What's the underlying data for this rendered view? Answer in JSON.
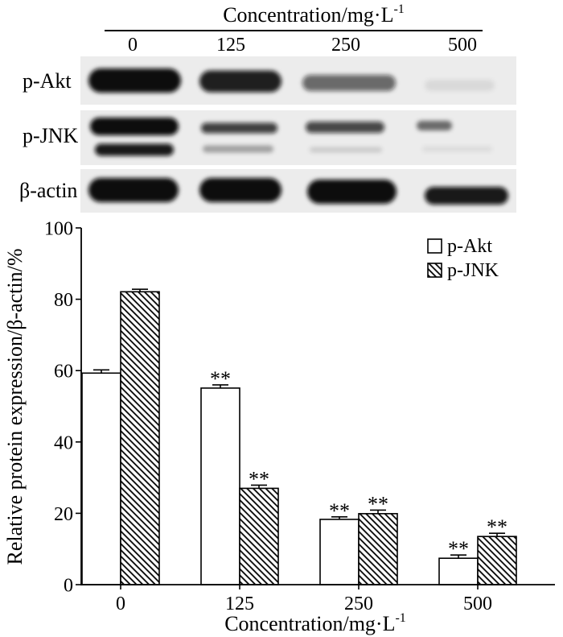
{
  "blot": {
    "title": {
      "text": "Concentration/mg·L",
      "sup": "-1"
    },
    "lanes": [
      "0",
      "125",
      "250",
      "500"
    ],
    "rows": [
      {
        "label": "p-Akt",
        "band_intensity": [
          [
            1.0,
            0.92,
            0.6,
            0.08
          ]
        ]
      },
      {
        "label": "p-JNK",
        "band_intensity": [
          [
            1.0,
            0.78,
            0.75,
            0.55
          ],
          [
            0.95,
            0.32,
            0.14,
            0.07
          ]
        ]
      },
      {
        "label": "β-actin",
        "band_intensity": [
          [
            1.0,
            1.0,
            1.0,
            0.95
          ]
        ]
      }
    ]
  },
  "chart_data": {
    "type": "bar",
    "categories": [
      "0",
      "125",
      "250",
      "500"
    ],
    "series": [
      {
        "name": "p-Akt",
        "values": [
          59.3,
          55.1,
          18.3,
          7.4
        ],
        "errors": [
          0.9,
          0.9,
          0.7,
          0.9
        ],
        "significance": [
          "",
          "**",
          "**",
          "**"
        ],
        "color": "#ffffff"
      },
      {
        "name": "p-JNK",
        "values": [
          82.1,
          27.0,
          19.9,
          13.5
        ],
        "errors": [
          0.7,
          0.9,
          1.0,
          0.9
        ],
        "significance": [
          "",
          "**",
          "**",
          "**"
        ],
        "color": "#000000",
        "pattern": "diagonal-hatch"
      }
    ],
    "xlabel": {
      "text": "Concentration/mg·L",
      "sup": "-1"
    },
    "ylabel": "Relative protein expression/β-actin/%",
    "ylim": [
      0,
      100
    ],
    "yticks": [
      0,
      20,
      40,
      60,
      80,
      100
    ],
    "legend": "top-right",
    "grid": false
  }
}
